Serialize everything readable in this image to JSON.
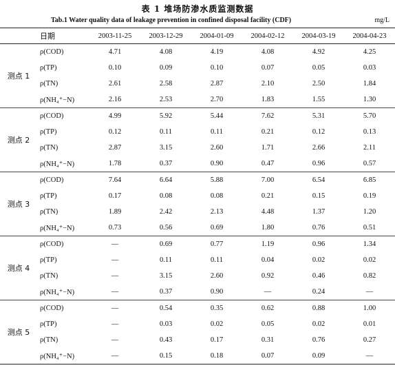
{
  "title_cn": "表 1    堆场防渗水质监测数据",
  "title_en": "Tab.1   Water quality data of leakage prevention in confined disposal facility (CDF)",
  "unit": "mg/L",
  "header": {
    "date_label": "日期",
    "dates": [
      "2003-11-25",
      "2003-12-29",
      "2004-01-09",
      "2004-02-12",
      "2004-03-19",
      "2004-04-23"
    ]
  },
  "groups": [
    {
      "site": "测点 1",
      "rows": [
        {
          "param": "ρ(COD)",
          "values": [
            "4.71",
            "4.08",
            "4.19",
            "4.08",
            "4.92",
            "4.25"
          ]
        },
        {
          "param": "ρ(TP)",
          "values": [
            "0.10",
            "0.09",
            "0.10",
            "0.07",
            "0.05",
            "0.03"
          ]
        },
        {
          "param": "ρ(TN)",
          "values": [
            "2.61",
            "2.58",
            "2.87",
            "2.10",
            "2.50",
            "1.84"
          ]
        },
        {
          "param": "ρ(NH₄⁺−N)",
          "values": [
            "2.16",
            "2.53",
            "2.70",
            "1.83",
            "1.55",
            "1.30"
          ]
        }
      ]
    },
    {
      "site": "测点 2",
      "rows": [
        {
          "param": "ρ(COD)",
          "values": [
            "4.99",
            "5.92",
            "5.44",
            "7.62",
            "5.31",
            "5.70"
          ]
        },
        {
          "param": "ρ(TP)",
          "values": [
            "0.12",
            "0.11",
            "0.11",
            "0.21",
            "0.12",
            "0.13"
          ]
        },
        {
          "param": "ρ(TN)",
          "values": [
            "2.87",
            "3.15",
            "2.60",
            "1.71",
            "2.66",
            "2.11"
          ]
        },
        {
          "param": "ρ(NH₄⁺−N)",
          "values": [
            "1.78",
            "0.37",
            "0.90",
            "0.47",
            "0.96",
            "0.57"
          ]
        }
      ]
    },
    {
      "site": "测点 3",
      "rows": [
        {
          "param": "ρ(COD)",
          "values": [
            "7.64",
            "6.64",
            "5.88",
            "7.00",
            "6.54",
            "6.85"
          ]
        },
        {
          "param": "ρ(TP)",
          "values": [
            "0.17",
            "0.08",
            "0.08",
            "0.21",
            "0.15",
            "0.19"
          ]
        },
        {
          "param": "ρ(TN)",
          "values": [
            "1.89",
            "2.42",
            "2.13",
            "4.48",
            "1.37",
            "1.20"
          ]
        },
        {
          "param": "ρ(NH₄⁺−N)",
          "values": [
            "0.73",
            "0.56",
            "0.69",
            "1.80",
            "0.76",
            "0.51"
          ]
        }
      ]
    },
    {
      "site": "测点 4",
      "rows": [
        {
          "param": "ρ(COD)",
          "values": [
            "—",
            "0.69",
            "0.77",
            "1.19",
            "0.96",
            "1.34"
          ]
        },
        {
          "param": "ρ(TP)",
          "values": [
            "—",
            "0.11",
            "0.11",
            "0.04",
            "0.02",
            "0.02"
          ]
        },
        {
          "param": "ρ(TN)",
          "values": [
            "—",
            "3.15",
            "2.60",
            "0.92",
            "0.46",
            "0.82"
          ]
        },
        {
          "param": "ρ(NH₄⁺−N)",
          "values": [
            "—",
            "0.37",
            "0.90",
            "—",
            "0.24",
            "—"
          ]
        }
      ]
    },
    {
      "site": "测点 5",
      "rows": [
        {
          "param": "ρ(COD)",
          "values": [
            "—",
            "0.54",
            "0.35",
            "0.62",
            "0.88",
            "1.00"
          ]
        },
        {
          "param": "ρ(TP)",
          "values": [
            "—",
            "0.03",
            "0.02",
            "0.05",
            "0.02",
            "0.01"
          ]
        },
        {
          "param": "ρ(TN)",
          "values": [
            "—",
            "0.43",
            "0.17",
            "0.31",
            "0.76",
            "0.27"
          ]
        },
        {
          "param": "ρ(NH₄⁺−N)",
          "values": [
            "—",
            "0.15",
            "0.18",
            "0.07",
            "0.09",
            "—"
          ]
        }
      ]
    }
  ]
}
